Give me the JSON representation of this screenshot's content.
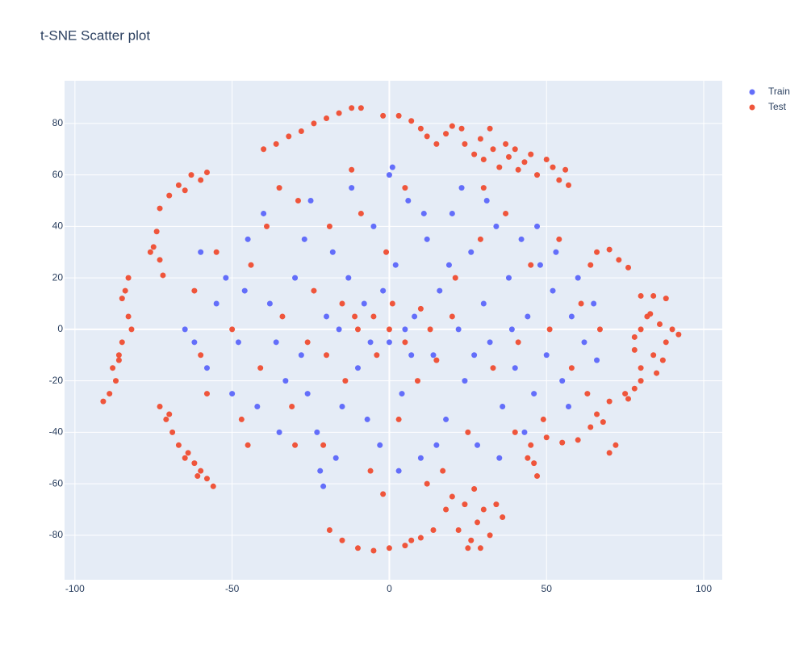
{
  "chart_data": {
    "type": "scatter",
    "title": "t-SNE Scatter plot",
    "xlim": [
      -103.3,
      105.9
    ],
    "ylim": [
      -97.3,
      96.6
    ],
    "xticks": [
      -100,
      -50,
      0,
      50,
      100
    ],
    "yticks": [
      -80,
      -60,
      -40,
      -20,
      0,
      20,
      40,
      60,
      80
    ],
    "grid": true,
    "legend": "top-right",
    "series": [
      {
        "name": "Train",
        "color": "#636efa",
        "x": [
          -60,
          -55,
          -62,
          -50,
          -45,
          -40,
          -35,
          -30,
          -28,
          -25,
          -22,
          -20,
          -18,
          -15,
          -12,
          -10,
          -8,
          -5,
          -3,
          0,
          0,
          2,
          4,
          6,
          8,
          10,
          12,
          14,
          16,
          18,
          20,
          22,
          24,
          26,
          28,
          30,
          32,
          34,
          36,
          38,
          40,
          42,
          44,
          46,
          48,
          50,
          52,
          55,
          58,
          60,
          62,
          65,
          66,
          -65,
          -58,
          -52,
          -48,
          -42,
          -38,
          -33,
          -27,
          -23,
          -17,
          -13,
          -7,
          -2,
          3,
          7,
          11,
          15,
          19,
          23,
          27,
          31,
          35,
          39,
          43,
          47,
          53,
          57,
          -46,
          -36,
          -26,
          -16,
          -6,
          5,
          1,
          -21
        ],
        "y": [
          30,
          10,
          -5,
          -25,
          35,
          45,
          -40,
          20,
          -10,
          50,
          -55,
          5,
          30,
          -30,
          55,
          -15,
          10,
          40,
          -45,
          60,
          -5,
          25,
          -25,
          50,
          5,
          -50,
          35,
          -10,
          15,
          -35,
          45,
          0,
          -20,
          30,
          -45,
          10,
          -5,
          40,
          -30,
          20,
          -15,
          35,
          5,
          -25,
          25,
          -10,
          15,
          -20,
          5,
          20,
          -5,
          10,
          -12,
          0,
          -15,
          20,
          -5,
          -30,
          10,
          -20,
          35,
          -40,
          -50,
          20,
          -35,
          15,
          -55,
          -10,
          45,
          -45,
          25,
          55,
          -10,
          50,
          -50,
          0,
          -40,
          40,
          30,
          -30,
          15,
          -5,
          -25,
          0,
          -5,
          0,
          63,
          -61
        ]
      },
      {
        "name": "Test",
        "color": "#EF553B",
        "x": [
          -40,
          -36,
          -32,
          -28,
          -24,
          -20,
          -16,
          -12,
          -9,
          -2,
          3,
          7,
          10,
          12,
          15,
          18,
          20,
          23,
          24,
          27,
          29,
          30,
          32,
          33,
          35,
          37,
          38,
          40,
          41,
          43,
          45,
          47,
          50,
          52,
          54,
          56,
          57,
          -73,
          -70,
          -67,
          -63,
          -58,
          -60,
          -65,
          -74,
          -75,
          -73,
          -72,
          -76,
          -83,
          -85,
          -83,
          -82,
          -85,
          -86,
          -88,
          -87,
          -89,
          -91,
          -84,
          -86,
          -73,
          -71,
          -69,
          -67,
          -64,
          -62,
          -60,
          -58,
          -56,
          -65,
          -70,
          -61,
          66,
          70,
          73,
          76,
          80,
          84,
          88,
          78,
          80,
          82,
          84,
          86,
          88,
          90,
          92,
          85,
          80,
          83,
          87,
          78,
          80,
          78,
          75,
          70,
          66,
          64,
          60,
          55,
          50,
          68,
          72,
          70,
          76,
          45,
          46,
          47,
          44,
          18,
          20,
          22,
          24,
          26,
          27,
          28,
          30,
          32,
          34,
          36,
          25,
          29,
          -19,
          -15,
          -10,
          -5,
          0,
          5,
          10,
          14,
          7,
          -62,
          -58,
          -55,
          -50,
          -47,
          -44,
          -41,
          -39,
          -34,
          -31,
          -29,
          -26,
          -24,
          -21,
          -19,
          -14,
          -11,
          -9,
          -6,
          -4,
          -1,
          1,
          3,
          5,
          9,
          13,
          17,
          21,
          25,
          29,
          33,
          37,
          41,
          45,
          49,
          51,
          54,
          58,
          61,
          63,
          67,
          -10,
          -5,
          0,
          5,
          10,
          -15,
          -20,
          15,
          20,
          -30,
          12,
          -45,
          40,
          -60,
          64,
          30,
          -35,
          -12,
          -2
        ],
        "y": [
          70,
          72,
          75,
          77,
          80,
          82,
          84,
          86,
          86,
          83,
          83,
          81,
          78,
          75,
          72,
          76,
          79,
          78,
          72,
          68,
          74,
          66,
          78,
          70,
          63,
          72,
          67,
          70,
          62,
          65,
          68,
          60,
          66,
          63,
          58,
          62,
          56,
          47,
          52,
          56,
          60,
          61,
          58,
          54,
          38,
          32,
          27,
          21,
          30,
          20,
          12,
          5,
          0,
          -5,
          -10,
          -15,
          -20,
          -25,
          -28,
          15,
          -12,
          -30,
          -35,
          -40,
          -45,
          -48,
          -52,
          -55,
          -58,
          -61,
          -50,
          -33,
          -57,
          30,
          31,
          27,
          24,
          13,
          13,
          12,
          -3,
          0,
          5,
          -10,
          2,
          -5,
          0,
          -2,
          -17,
          -15,
          6,
          -12,
          -8,
          -20,
          -23,
          -25,
          -28,
          -33,
          -38,
          -43,
          -44,
          -42,
          -36,
          -45,
          -48,
          -27,
          -45,
          -52,
          -57,
          -50,
          -70,
          -65,
          -78,
          -68,
          -82,
          -62,
          -75,
          -70,
          -80,
          -68,
          -73,
          -85,
          -85,
          -78,
          -82,
          -85,
          -86,
          -85,
          -84,
          -81,
          -78,
          -82,
          15,
          -25,
          30,
          0,
          -35,
          25,
          -15,
          40,
          5,
          -30,
          50,
          -5,
          15,
          -45,
          40,
          -20,
          5,
          45,
          -55,
          -10,
          30,
          10,
          -35,
          55,
          -20,
          0,
          -55,
          20,
          -40,
          35,
          -15,
          45,
          -5,
          25,
          -35,
          0,
          35,
          -15,
          10,
          -25,
          0,
          0,
          5,
          0,
          -5,
          8,
          10,
          -10,
          -12,
          5,
          -45,
          -60,
          -45,
          -40,
          -10,
          25,
          55,
          55,
          62,
          -64
        ]
      }
    ]
  }
}
